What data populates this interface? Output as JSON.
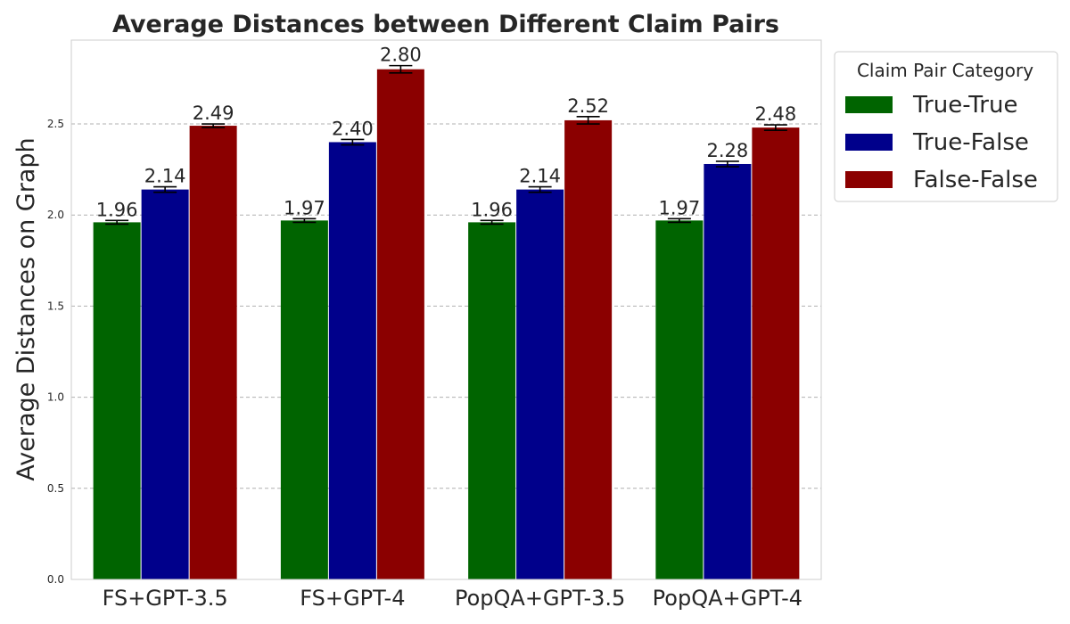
{
  "chart_data": {
    "type": "bar",
    "title": "Average Distances between Different Claim Pairs",
    "xlabel": "",
    "ylabel": "Average Distances on Graph",
    "categories": [
      "FS+GPT-3.5",
      "FS+GPT-4",
      "PopQA+GPT-3.5",
      "PopQA+GPT-4"
    ],
    "series": [
      {
        "name": "True-True",
        "color": "#006400",
        "values": [
          1.96,
          1.97,
          1.96,
          1.97
        ],
        "labels": [
          "1.96",
          "1.97",
          "1.96",
          "1.97"
        ],
        "errors": [
          0.01,
          0.01,
          0.01,
          0.01
        ]
      },
      {
        "name": "True-False",
        "color": "#00008b",
        "values": [
          2.14,
          2.4,
          2.14,
          2.28
        ],
        "labels": [
          "2.14",
          "2.40",
          "2.14",
          "2.28"
        ],
        "errors": [
          0.015,
          0.015,
          0.015,
          0.015
        ]
      },
      {
        "name": "False-False",
        "color": "#8b0000",
        "values": [
          2.49,
          2.8,
          2.52,
          2.48
        ],
        "labels": [
          "2.49",
          "2.80",
          "2.52",
          "2.48"
        ],
        "errors": [
          0.01,
          0.02,
          0.02,
          0.015
        ]
      }
    ],
    "ylim": [
      0,
      2.96
    ],
    "yticks": [
      "0.0",
      "0.5",
      "1.0",
      "1.5",
      "2.0",
      "2.5"
    ],
    "grid": "y",
    "legend": {
      "title": "Claim Pair Category",
      "placement": "outside-top-right"
    }
  }
}
